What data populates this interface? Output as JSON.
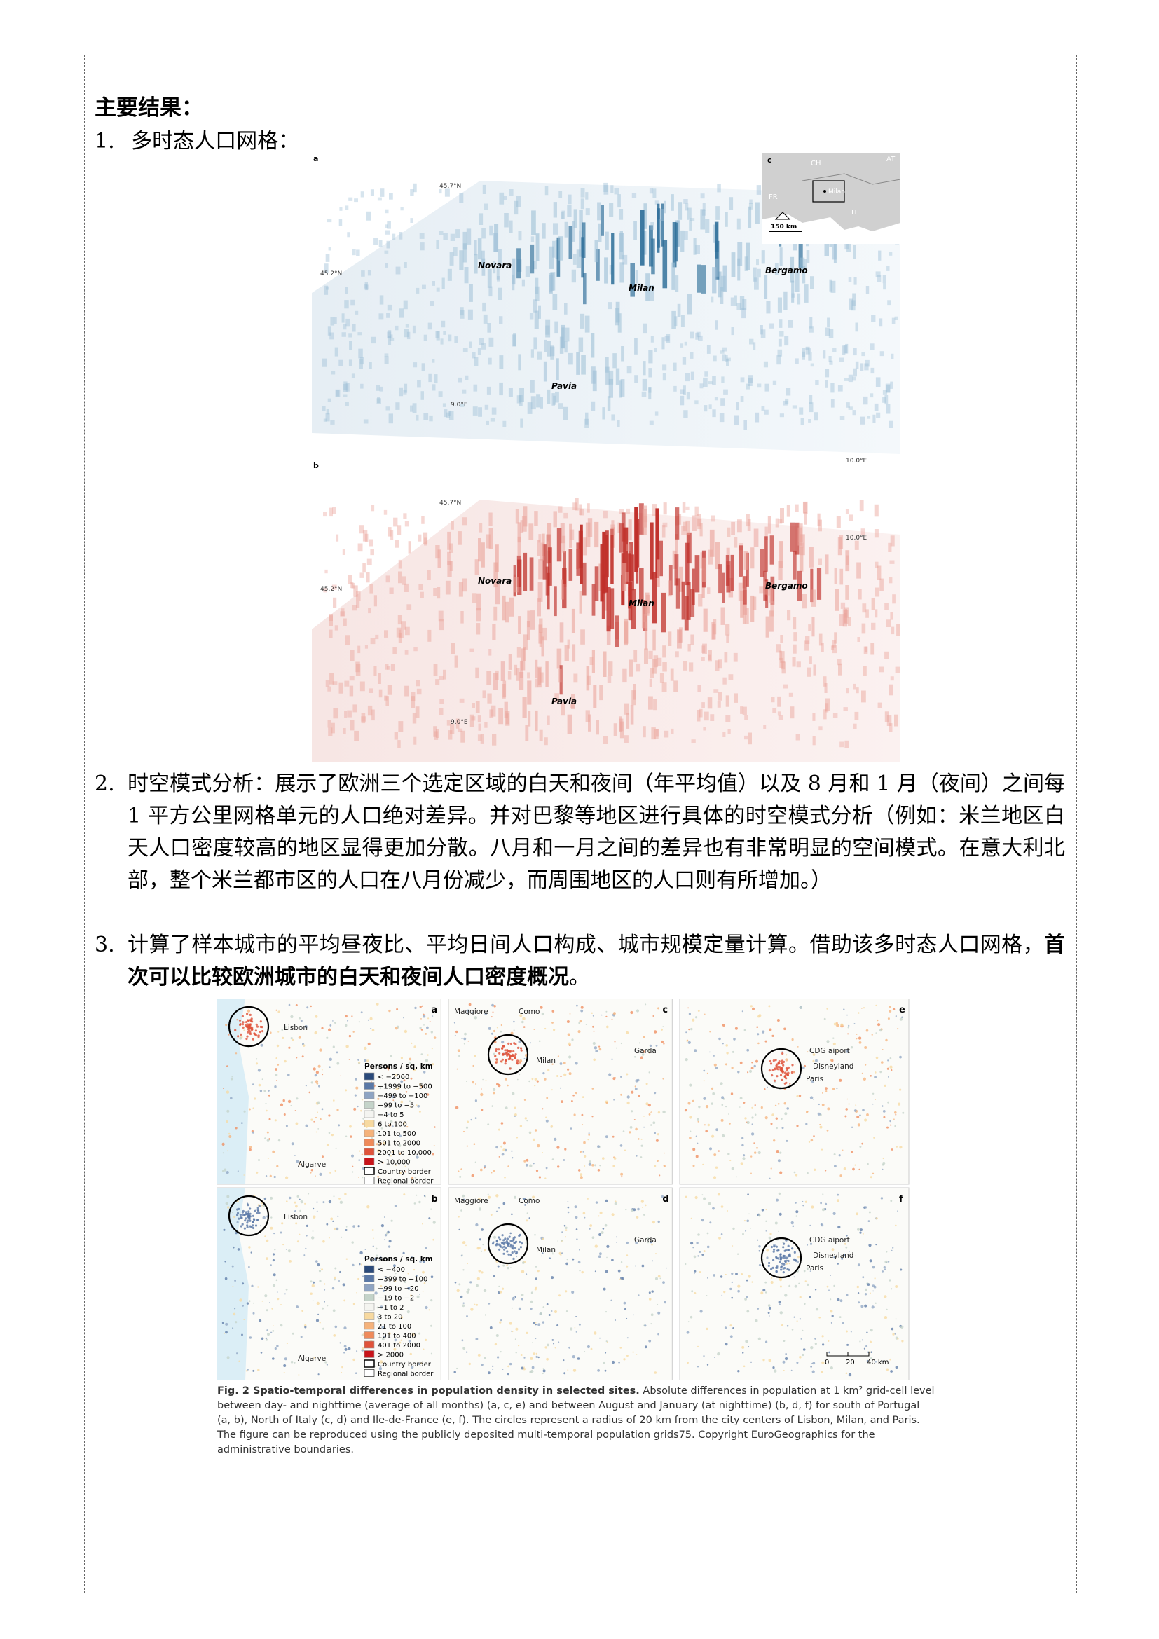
{
  "heading": "主要结果：",
  "item1": {
    "num": "1.",
    "text": "多时态人口网格："
  },
  "item2": {
    "num": "2.",
    "text": "时空模式分析：展示了欧洲三个选定区域的白天和夜间（年平均值）以及 8 月和 1 月（夜间）之间每 1 平方公里网格单元的人口绝对差异。并对巴黎等地区进行具体的时空模式分析（例如：米兰地区白天人口密度较高的地区显得更加分散。八月和一月之间的差异也有非常明显的空间模式。在意大利北部，整个米兰都市区的人口在八月份减少，而周围地区的人口则有所增加。）"
  },
  "item3": {
    "num": "3.",
    "text_plain": "计算了样本城市的平均昼夜比、平均日间人口构成、城市规模定量计算。借助该多时态人口网格，",
    "text_bold": "首次可以比较欧洲城市的白天和夜间人口密度概况",
    "text_end": "。"
  },
  "figure1": {
    "panel_a": "a",
    "panel_b": "b",
    "panel_c": "c",
    "lat_top": "45.7°N",
    "lat_mid": "45.2°N",
    "lon_left": "9.0°E",
    "lon_right": "10.0°E",
    "cities": [
      "Novara",
      "Milan",
      "Bergamo",
      "Pavia"
    ],
    "inset": {
      "labels": [
        "CH",
        "AT",
        "FR",
        "IT"
      ],
      "city": "Milan",
      "scale": "150 km"
    },
    "colors": {
      "blue": "#2f6f9a",
      "red": "#c0302a"
    }
  },
  "figure2": {
    "panels": [
      "a",
      "b",
      "c",
      "d",
      "e",
      "f"
    ],
    "portugal": {
      "city": "Lisbon",
      "region": "Algarve"
    },
    "italy": {
      "labels": [
        "Maggiore",
        "Como",
        "Garda",
        "Milan"
      ]
    },
    "france": {
      "labels": [
        "CDG aiport",
        "Disneyland",
        "Paris"
      ]
    },
    "legend_top": {
      "title": "Persons / sq. km",
      "items": [
        "< −2000",
        "−1999 to −500",
        "−499 to −100",
        "−99 to −5",
        "−4 to 5",
        "6 to 100",
        "101 to 500",
        "501 to 2000",
        "2001 to 10,000",
        "> 10,000",
        "Country border",
        "Regional border"
      ],
      "colors": [
        "#2b4a7a",
        "#5a78a6",
        "#8ea4c3",
        "#c4d3c9",
        "#f4f4f0",
        "#f7d9a0",
        "#f5b27a",
        "#ef8a5a",
        "#e0533a",
        "#c8141a",
        "#ffffff",
        "#ffffff"
      ]
    },
    "legend_bottom": {
      "title": "Persons / sq. km",
      "items": [
        "< −400",
        "−399 to −100",
        "−99 to −20",
        "−19 to −2",
        "−1 to 2",
        "3 to 20",
        "21 to 100",
        "101 to 400",
        "401 to 2000",
        "> 2000",
        "Country border",
        "Regional border"
      ],
      "colors": [
        "#2b4a7a",
        "#5a78a6",
        "#8ea4c3",
        "#c4d3c9",
        "#f4f4f0",
        "#f7d9a0",
        "#f5b27a",
        "#ef8a5a",
        "#e0533a",
        "#c8141a",
        "#ffffff",
        "#ffffff"
      ]
    },
    "scalebar": [
      "0",
      "20",
      "40 km"
    ]
  },
  "caption": {
    "title": "Fig. 2 Spatio-temporal differences in population density in selected sites.",
    "body": " Absolute differences in population at 1 km² grid-cell level between day- and nighttime (average of all months) (a, c, e) and between August and January (at nighttime) (b, d, f) for south of Portugal (a, b), North of Italy (c, d) and Ile-de-France (e, f). The circles represent a radius of 20 km from the city centers of Lisbon, Milan, and Paris. The figure can be reproduced using the publicly deposited multi-temporal population grids75. Copyright EuroGeographics for the administrative boundaries."
  }
}
